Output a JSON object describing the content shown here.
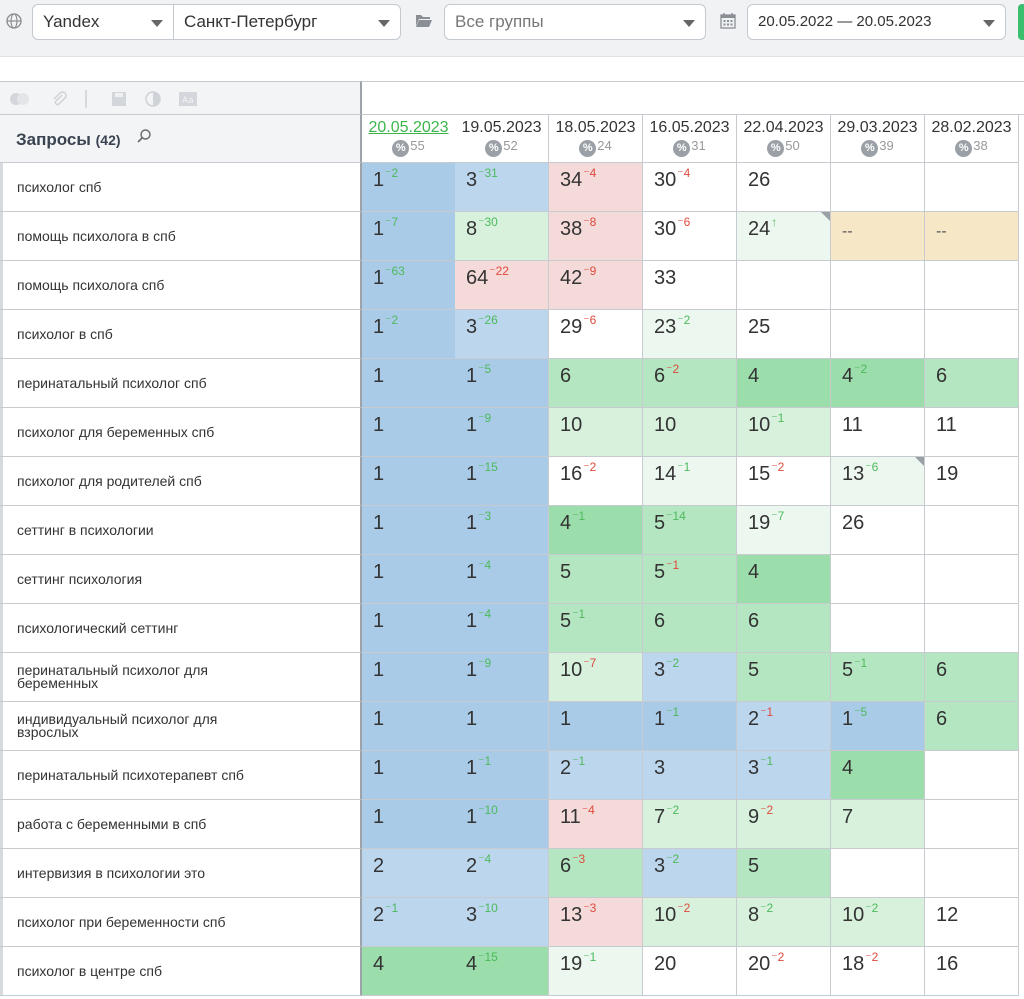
{
  "toolbar": {
    "engine": "Yandex",
    "region": "Санкт-Петербург",
    "groups_placeholder": "Все группы",
    "date_range": "20.05.2022 — 20.05.2023"
  },
  "queries_header": {
    "title": "Запросы",
    "count": "(42)"
  },
  "dates": [
    {
      "date": "20.05.2023",
      "num": "55"
    },
    {
      "date": "19.05.2023",
      "num": "52"
    },
    {
      "date": "18.05.2023",
      "num": "24"
    },
    {
      "date": "16.05.2023",
      "num": "31"
    },
    {
      "date": "22.04.2023",
      "num": "50"
    },
    {
      "date": "29.03.2023",
      "num": "39"
    },
    {
      "date": "28.02.2023",
      "num": "38"
    }
  ],
  "rows": [
    {
      "query": "психолог спб",
      "cells": [
        {
          "v": "1",
          "d": "2",
          "dir": "up",
          "c": "blue-dark"
        },
        {
          "v": "3",
          "d": "31",
          "dir": "up",
          "c": "blue"
        },
        {
          "v": "34",
          "d": "4",
          "dir": "down",
          "c": "red"
        },
        {
          "v": "30",
          "d": "4",
          "dir": "down",
          "c": "white"
        },
        {
          "v": "26",
          "c": "white"
        },
        {
          "v": "",
          "c": "white"
        },
        {
          "v": "",
          "c": "white"
        }
      ]
    },
    {
      "query": "помощь психолога в спб",
      "cells": [
        {
          "v": "1",
          "d": "7",
          "dir": "up",
          "c": "blue-dark"
        },
        {
          "v": "8",
          "d": "30",
          "dir": "up",
          "c": "green-light"
        },
        {
          "v": "38",
          "d": "8",
          "dir": "down",
          "c": "red"
        },
        {
          "v": "30",
          "d": "6",
          "dir": "down",
          "c": "white"
        },
        {
          "v": "24",
          "d": "↑",
          "dir": "up",
          "c": "green-pale",
          "corner": true
        },
        {
          "v": "--",
          "c": "yellow",
          "dash": true
        },
        {
          "v": "--",
          "c": "yellow",
          "dash": true
        }
      ]
    },
    {
      "query": "помощь психолога спб",
      "cells": [
        {
          "v": "1",
          "d": "63",
          "dir": "up",
          "c": "blue-dark"
        },
        {
          "v": "64",
          "d": "22",
          "dir": "down",
          "c": "red"
        },
        {
          "v": "42",
          "d": "9",
          "dir": "down",
          "c": "red"
        },
        {
          "v": "33",
          "c": "white"
        },
        {
          "v": "",
          "c": "white"
        },
        {
          "v": "",
          "c": "white"
        },
        {
          "v": "",
          "c": "white"
        }
      ]
    },
    {
      "query": "психолог в спб",
      "cells": [
        {
          "v": "1",
          "d": "2",
          "dir": "up",
          "c": "blue-dark"
        },
        {
          "v": "3",
          "d": "26",
          "dir": "up",
          "c": "blue"
        },
        {
          "v": "29",
          "d": "6",
          "dir": "down",
          "c": "white"
        },
        {
          "v": "23",
          "d": "2",
          "dir": "up",
          "c": "green-pale"
        },
        {
          "v": "25",
          "c": "white"
        },
        {
          "v": "",
          "c": "white"
        },
        {
          "v": "",
          "c": "white"
        }
      ]
    },
    {
      "query": "перинатальный психолог спб",
      "cells": [
        {
          "v": "1",
          "c": "blue-dark"
        },
        {
          "v": "1",
          "d": "5",
          "dir": "up",
          "c": "blue-dark"
        },
        {
          "v": "6",
          "c": "green"
        },
        {
          "v": "6",
          "d": "2",
          "dir": "down",
          "c": "green"
        },
        {
          "v": "4",
          "c": "green-dark"
        },
        {
          "v": "4",
          "d": "2",
          "dir": "up",
          "c": "green-dark"
        },
        {
          "v": "6",
          "c": "green"
        }
      ]
    },
    {
      "query": "психолог для беременных спб",
      "cells": [
        {
          "v": "1",
          "c": "blue-dark"
        },
        {
          "v": "1",
          "d": "9",
          "dir": "up",
          "c": "blue-dark"
        },
        {
          "v": "10",
          "c": "green-light"
        },
        {
          "v": "10",
          "c": "green-light"
        },
        {
          "v": "10",
          "d": "1",
          "dir": "up",
          "c": "green-light"
        },
        {
          "v": "11",
          "c": "white"
        },
        {
          "v": "11",
          "c": "white"
        }
      ]
    },
    {
      "query": "психолог для родителей спб",
      "cells": [
        {
          "v": "1",
          "c": "blue-dark"
        },
        {
          "v": "1",
          "d": "15",
          "dir": "up",
          "c": "blue-dark"
        },
        {
          "v": "16",
          "d": "2",
          "dir": "down",
          "c": "white"
        },
        {
          "v": "14",
          "d": "1",
          "dir": "up",
          "c": "green-pale"
        },
        {
          "v": "15",
          "d": "2",
          "dir": "down",
          "c": "white"
        },
        {
          "v": "13",
          "d": "6",
          "dir": "up",
          "c": "green-pale",
          "corner": true
        },
        {
          "v": "19",
          "c": "white"
        }
      ]
    },
    {
      "query": "сеттинг в психологии",
      "cells": [
        {
          "v": "1",
          "c": "blue-dark"
        },
        {
          "v": "1",
          "d": "3",
          "dir": "up",
          "c": "blue-dark"
        },
        {
          "v": "4",
          "d": "1",
          "dir": "up",
          "c": "green-dark"
        },
        {
          "v": "5",
          "d": "14",
          "dir": "up",
          "c": "green"
        },
        {
          "v": "19",
          "d": "7",
          "dir": "up",
          "c": "green-pale"
        },
        {
          "v": "26",
          "c": "white"
        },
        {
          "v": "",
          "c": "white"
        }
      ]
    },
    {
      "query": "сеттинг психология",
      "cells": [
        {
          "v": "1",
          "c": "blue-dark"
        },
        {
          "v": "1",
          "d": "4",
          "dir": "up",
          "c": "blue-dark"
        },
        {
          "v": "5",
          "c": "green"
        },
        {
          "v": "5",
          "d": "1",
          "dir": "down",
          "c": "green"
        },
        {
          "v": "4",
          "c": "green-dark"
        },
        {
          "v": "",
          "c": "white"
        },
        {
          "v": "",
          "c": "white"
        }
      ]
    },
    {
      "query": "психологический сеттинг",
      "cells": [
        {
          "v": "1",
          "c": "blue-dark"
        },
        {
          "v": "1",
          "d": "4",
          "dir": "up",
          "c": "blue-dark"
        },
        {
          "v": "5",
          "d": "1",
          "dir": "up",
          "c": "green"
        },
        {
          "v": "6",
          "c": "green"
        },
        {
          "v": "6",
          "c": "green"
        },
        {
          "v": "",
          "c": "white"
        },
        {
          "v": "",
          "c": "white"
        }
      ]
    },
    {
      "query": "перинатальный психолог для беременных",
      "cells": [
        {
          "v": "1",
          "c": "blue-dark"
        },
        {
          "v": "1",
          "d": "9",
          "dir": "up",
          "c": "blue-dark"
        },
        {
          "v": "10",
          "d": "7",
          "dir": "down",
          "c": "green-light"
        },
        {
          "v": "3",
          "d": "2",
          "dir": "up",
          "c": "blue"
        },
        {
          "v": "5",
          "c": "green"
        },
        {
          "v": "5",
          "d": "1",
          "dir": "up",
          "c": "green"
        },
        {
          "v": "6",
          "c": "green"
        }
      ]
    },
    {
      "query": "индивидуальный психолог для взрослых",
      "cells": [
        {
          "v": "1",
          "c": "blue-dark"
        },
        {
          "v": "1",
          "c": "blue-dark"
        },
        {
          "v": "1",
          "c": "blue-dark"
        },
        {
          "v": "1",
          "d": "1",
          "dir": "up",
          "c": "blue-dark"
        },
        {
          "v": "2",
          "d": "1",
          "dir": "down",
          "c": "blue"
        },
        {
          "v": "1",
          "d": "5",
          "dir": "up",
          "c": "blue-dark"
        },
        {
          "v": "6",
          "c": "green"
        }
      ]
    },
    {
      "query": "перинатальный психотерапевт спб",
      "cells": [
        {
          "v": "1",
          "c": "blue-dark"
        },
        {
          "v": "1",
          "d": "1",
          "dir": "up",
          "c": "blue-dark"
        },
        {
          "v": "2",
          "d": "1",
          "dir": "up",
          "c": "blue"
        },
        {
          "v": "3",
          "c": "blue"
        },
        {
          "v": "3",
          "d": "1",
          "dir": "up",
          "c": "blue"
        },
        {
          "v": "4",
          "c": "green-dark"
        },
        {
          "v": "",
          "c": "white"
        }
      ]
    },
    {
      "query": "работа с беременными в спб",
      "cells": [
        {
          "v": "1",
          "c": "blue-dark"
        },
        {
          "v": "1",
          "d": "10",
          "dir": "up",
          "c": "blue-dark"
        },
        {
          "v": "11",
          "d": "4",
          "dir": "down",
          "c": "red"
        },
        {
          "v": "7",
          "d": "2",
          "dir": "up",
          "c": "green-light"
        },
        {
          "v": "9",
          "d": "2",
          "dir": "down",
          "c": "green-light"
        },
        {
          "v": "7",
          "c": "green-light"
        },
        {
          "v": "",
          "c": "white"
        }
      ]
    },
    {
      "query": "интервизия в психологии это",
      "cells": [
        {
          "v": "2",
          "c": "blue"
        },
        {
          "v": "2",
          "d": "4",
          "dir": "up",
          "c": "blue"
        },
        {
          "v": "6",
          "d": "3",
          "dir": "down",
          "c": "green"
        },
        {
          "v": "3",
          "d": "2",
          "dir": "up",
          "c": "blue"
        },
        {
          "v": "5",
          "c": "green"
        },
        {
          "v": "",
          "c": "white"
        },
        {
          "v": "",
          "c": "white"
        }
      ]
    },
    {
      "query": "психолог при беременности спб",
      "cells": [
        {
          "v": "2",
          "d": "1",
          "dir": "up",
          "c": "blue"
        },
        {
          "v": "3",
          "d": "10",
          "dir": "up",
          "c": "blue"
        },
        {
          "v": "13",
          "d": "3",
          "dir": "down",
          "c": "red"
        },
        {
          "v": "10",
          "d": "2",
          "dir": "down",
          "c": "green-light"
        },
        {
          "v": "8",
          "d": "2",
          "dir": "up",
          "c": "green-light"
        },
        {
          "v": "10",
          "d": "2",
          "dir": "up",
          "c": "green-light"
        },
        {
          "v": "12",
          "c": "white"
        }
      ]
    },
    {
      "query": "психолог в центре спб",
      "cells": [
        {
          "v": "4",
          "c": "green-dark"
        },
        {
          "v": "4",
          "d": "15",
          "dir": "up",
          "c": "green-dark"
        },
        {
          "v": "19",
          "d": "1",
          "dir": "up",
          "c": "green-pale"
        },
        {
          "v": "20",
          "c": "white"
        },
        {
          "v": "20",
          "d": "2",
          "dir": "down",
          "c": "white"
        },
        {
          "v": "18",
          "d": "2",
          "dir": "down",
          "c": "white"
        },
        {
          "v": "16",
          "c": "white"
        }
      ]
    }
  ],
  "colors": {
    "blue-dark": "#a9cbe8",
    "blue": "#bcd6ee",
    "green-dark": "#9bddab",
    "green": "#b5e6c2",
    "green-light": "#d7f1dd",
    "green-pale": "#ecf8ef",
    "red": "#f5dada",
    "yellow": "#f6e7c6",
    "white": "#ffffff",
    "accent-green": "#3bb54a"
  }
}
